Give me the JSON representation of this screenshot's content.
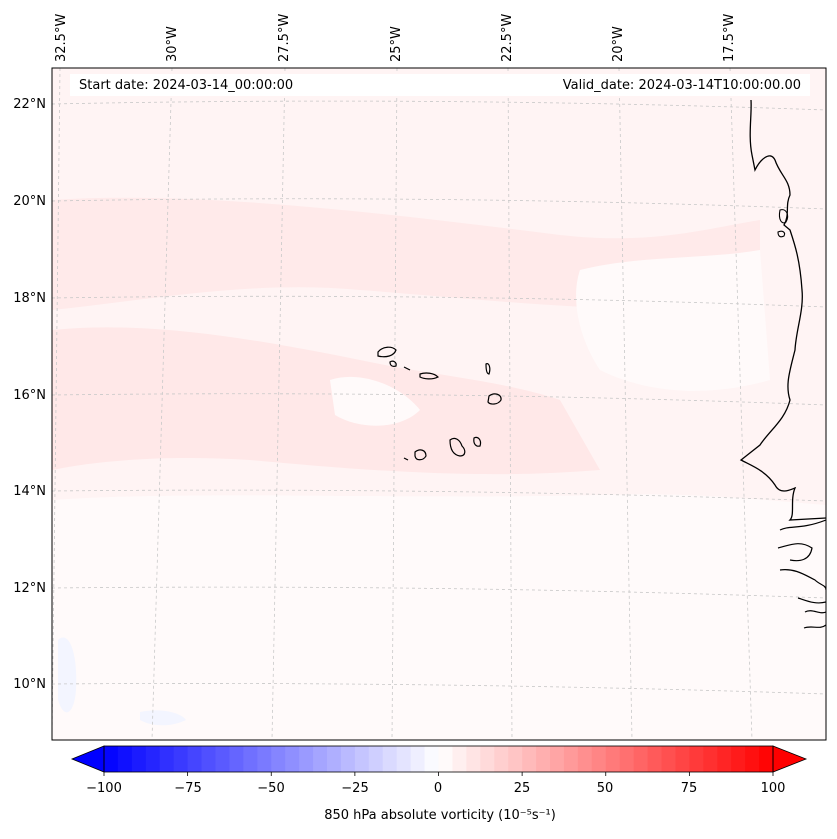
{
  "map": {
    "header_left": "Start date: 2024-03-14_00:00:00",
    "header_right": "Valid_date: 2024-03-14T10:00:00.00",
    "lon_labels": [
      "32.5°W",
      "30°W",
      "27.5°W",
      "25°W",
      "22.5°W",
      "20°W",
      "17.5°W"
    ],
    "lat_labels": [
      "22°N",
      "20°N",
      "18°N",
      "16°N",
      "14°N",
      "12°N",
      "10°N"
    ],
    "colors": {
      "field_pale": "#fff2f2",
      "field_light": "#ffe6e6",
      "field_white": "#fffafa",
      "blue_patch": "#f2f4ff",
      "coast": "#000000",
      "grid": "#c8c8c8"
    }
  },
  "colorbar": {
    "label": "850 hPa absolute vorticity (10⁻⁵s⁻¹)",
    "ticks": [
      "−100",
      "−75",
      "−50",
      "−25",
      "0",
      "25",
      "50",
      "75",
      "100"
    ],
    "min": -100,
    "max": 100,
    "levels": 48,
    "color_min": "#0000ff",
    "color_mid": "#ffffff",
    "color_max": "#ff0000"
  }
}
